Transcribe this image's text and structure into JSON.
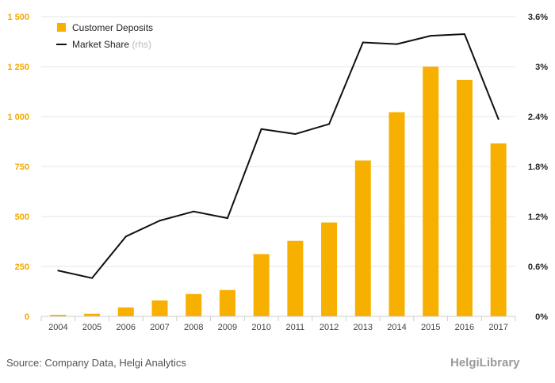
{
  "chart_data": {
    "type": "bar",
    "categories": [
      "2004",
      "2005",
      "2006",
      "2007",
      "2008",
      "2009",
      "2010",
      "2011",
      "2012",
      "2013",
      "2014",
      "2015",
      "2016",
      "2017"
    ],
    "series": [
      {
        "name": "Customer Deposits",
        "type": "bar",
        "axis": "left",
        "color": "#f7b000",
        "values": [
          8,
          13,
          45,
          80,
          112,
          132,
          312,
          378,
          470,
          780,
          1022,
          1250,
          1183,
          866
        ]
      },
      {
        "name": "Market Share",
        "type": "line",
        "axis": "right",
        "color": "#111111",
        "values": [
          0.55,
          0.46,
          0.96,
          1.15,
          1.26,
          1.18,
          2.25,
          2.19,
          2.31,
          3.29,
          3.27,
          3.37,
          3.39,
          2.37
        ]
      }
    ],
    "legend_rhs_suffix": "(rhs)",
    "ylim_left": [
      0,
      1500
    ],
    "ylim_right": [
      0,
      3.6
    ],
    "yticks_left": [
      "0",
      "250",
      "500",
      "750",
      "1 000",
      "1 250",
      "1 500"
    ],
    "yticks_right": [
      "0%",
      "0.6%",
      "1.2%",
      "1.8%",
      "2.4%",
      "3%",
      "3.6%"
    ],
    "grid": true,
    "legend_position": "top-left"
  },
  "footer": {
    "source": "Source: Company Data, Helgi Analytics",
    "brand": "HelgiLibrary"
  }
}
